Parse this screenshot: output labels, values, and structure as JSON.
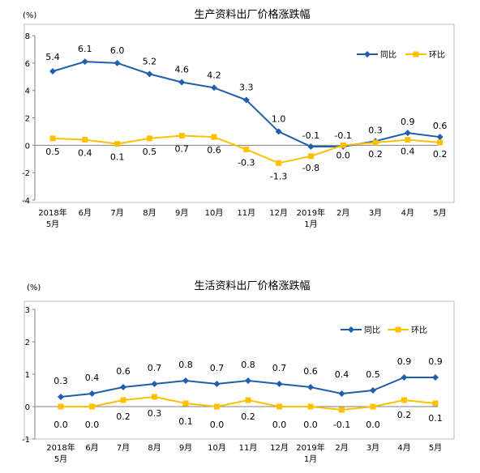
{
  "chart_data": [
    {
      "type": "line",
      "title": "生产资料出厂价格涨跌幅",
      "unit": "(%)",
      "categories": [
        [
          "2018年",
          "5月"
        ],
        [
          "6月"
        ],
        [
          "7月"
        ],
        [
          "8月"
        ],
        [
          "9月"
        ],
        [
          "10月"
        ],
        [
          "11月"
        ],
        [
          "12月"
        ],
        [
          "2019年",
          "1月"
        ],
        [
          "2月"
        ],
        [
          "3月"
        ],
        [
          "4月"
        ],
        [
          "5月"
        ]
      ],
      "ylim": [
        -4,
        8
      ],
      "yticks": [
        -4,
        -2,
        0,
        2,
        4,
        6,
        8
      ],
      "grid": false,
      "legend_position": "top-right",
      "series": [
        {
          "name": "同比",
          "color": "#1f5fad",
          "marker": "diamond",
          "values": [
            5.4,
            6.1,
            6.0,
            5.2,
            4.6,
            4.2,
            3.3,
            1.0,
            -0.1,
            -0.1,
            0.3,
            0.9,
            0.6
          ],
          "labels": [
            "5.4",
            "6.1",
            "6.0",
            "5.2",
            "4.6",
            "4.2",
            "3.3",
            "1.0",
            "-0.1",
            "-0.1",
            "0.3",
            "0.9",
            "0.6"
          ]
        },
        {
          "name": "环比",
          "color": "#ffc000",
          "marker": "square",
          "values": [
            0.5,
            0.4,
            0.1,
            0.5,
            0.7,
            0.6,
            -0.3,
            -1.3,
            -0.8,
            0.0,
            0.2,
            0.4,
            0.2
          ],
          "labels": [
            "0.5",
            "0.4",
            "0.1",
            "0.5",
            "0.7",
            "0.6",
            "-0.3",
            "-1.3",
            "-0.8",
            "0.0",
            "0.2",
            "0.4",
            "0.2"
          ]
        }
      ]
    },
    {
      "type": "line",
      "title": "生活资料出厂价格涨跌幅",
      "unit": "(%)",
      "categories": [
        [
          "2018年",
          "5月"
        ],
        [
          "6月"
        ],
        [
          "7月"
        ],
        [
          "8月"
        ],
        [
          "9月"
        ],
        [
          "10月"
        ],
        [
          "11月"
        ],
        [
          "12月"
        ],
        [
          "2019年",
          "1月"
        ],
        [
          "2月"
        ],
        [
          "3月"
        ],
        [
          "4月"
        ],
        [
          "5月"
        ]
      ],
      "ylim": [
        -1,
        3
      ],
      "yticks": [
        -1,
        0,
        1,
        2,
        3
      ],
      "grid": false,
      "legend_position": "top-right",
      "series": [
        {
          "name": "同比",
          "color": "#1f5fad",
          "marker": "diamond",
          "values": [
            0.3,
            0.4,
            0.6,
            0.7,
            0.8,
            0.7,
            0.8,
            0.7,
            0.6,
            0.4,
            0.5,
            0.9,
            0.9
          ],
          "labels": [
            "0.3",
            "0.4",
            "0.6",
            "0.7",
            "0.8",
            "0.7",
            "0.8",
            "0.7",
            "0.6",
            "0.4",
            "0.5",
            "0.9",
            "0.9"
          ]
        },
        {
          "name": "环比",
          "color": "#ffc000",
          "marker": "square",
          "values": [
            0.0,
            0.0,
            0.2,
            0.3,
            0.1,
            0.0,
            0.2,
            0.0,
            0.0,
            -0.1,
            0.0,
            0.2,
            0.1
          ],
          "labels": [
            "0.0",
            "0.0",
            "0.2",
            "0.3",
            "0.1",
            "0.0",
            "0.2",
            "0.0",
            "0.0",
            "-0.1",
            "0.0",
            "0.2",
            "0.1"
          ]
        }
      ]
    }
  ]
}
